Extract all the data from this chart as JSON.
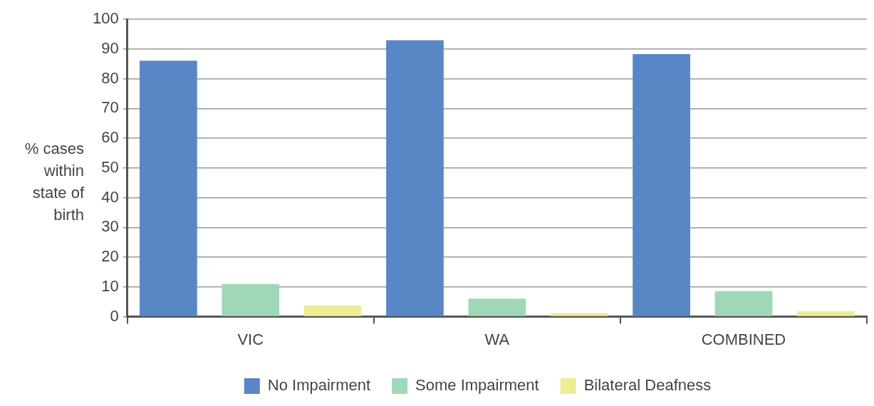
{
  "chart_data": {
    "type": "bar",
    "ylabel": "% cases within state of birth",
    "categories": [
      "VIC",
      "WA",
      "COMBINED"
    ],
    "series": [
      {
        "name": "No Impairment",
        "color": "#5987c6",
        "values": [
          86.1,
          93,
          88.3
        ]
      },
      {
        "name": "Some Impairment",
        "color": "#a0d8b7",
        "values": [
          11,
          6.1,
          8.6
        ]
      },
      {
        "name": "Bilateral Deafness",
        "color": "#eded94",
        "values": [
          3.8,
          1.2,
          1.9
        ]
      }
    ],
    "ylim": [
      0,
      100
    ],
    "yticks": [
      0,
      10,
      20,
      30,
      40,
      50,
      60,
      70,
      80,
      90,
      100
    ],
    "grid": "y",
    "legend": "bottom"
  }
}
